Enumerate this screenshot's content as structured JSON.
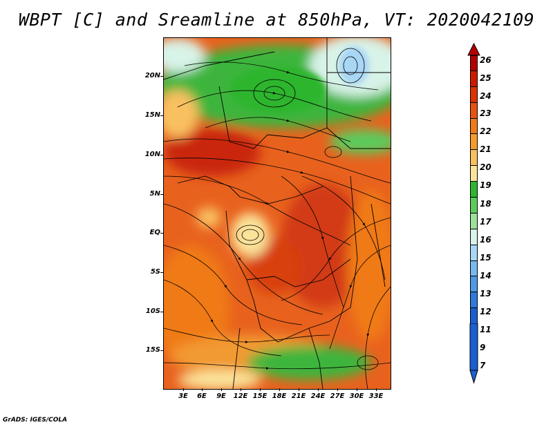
{
  "title": "WBPT [C] and Sreamline at 850hPa, VT: 2020042109",
  "footer": "GrADS: IGES/COLA",
  "lat_labels": [
    "20N",
    "15N",
    "10N",
    "5N",
    "EQ",
    "5S",
    "10S",
    "15S"
  ],
  "lon_labels": [
    "3E",
    "6E",
    "9E",
    "12E",
    "15E",
    "18E",
    "21E",
    "24E",
    "27E",
    "30E",
    "33E"
  ],
  "colorbar": {
    "labels": [
      "26",
      "25",
      "24",
      "23",
      "22",
      "21",
      "20",
      "19",
      "18",
      "17",
      "16",
      "15",
      "14",
      "13",
      "12",
      "11",
      "9",
      "7"
    ],
    "colors_top_to_bottom": [
      "#b30000",
      "#cc1a00",
      "#dd3300",
      "#e85210",
      "#f07a18",
      "#f59c2a",
      "#f9c060",
      "#fbe39a",
      "#2fb52f",
      "#5ccb5c",
      "#9ce09c",
      "#d8f3e8",
      "#a8d6f5",
      "#78baef",
      "#4f9ae6",
      "#2f7bdc",
      "#1a5fd0"
    ]
  },
  "colors": {
    "warm_core": "#c9260e",
    "warm": "#e8621e",
    "orange": "#f29a33",
    "yellow": "#fbe39a",
    "green": "#3cb53c",
    "light_green": "#9ce09c",
    "pale": "#d8f3e8",
    "blue": "#78baef"
  }
}
